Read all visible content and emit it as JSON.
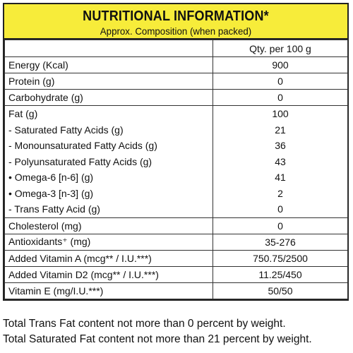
{
  "header": {
    "title": "NUTRITIONAL INFORMATION*",
    "subtitle": "Approx. Composition (when packed)"
  },
  "table": {
    "column_header": "Qty. per 100 g",
    "rows": [
      {
        "label": "Energy  (Kcal)",
        "value": "900"
      },
      {
        "label": "Protein (g)",
        "value": "0"
      },
      {
        "label": "Carbohydrate (g)",
        "value": "0"
      },
      {
        "label": "Fat (g)",
        "value": "100"
      },
      {
        "label": "- Saturated Fatty Acids (g)",
        "value": "21"
      },
      {
        "label": "- Monounsaturated Fatty Acids (g)",
        "value": "36"
      },
      {
        "label": "- Polyunsaturated Fatty Acids (g)",
        "value": "43"
      },
      {
        "label": "• Omega-6 [n-6] (g)",
        "value": "41"
      },
      {
        "label": "• Omega-3 [n-3] (g)",
        "value": "2"
      },
      {
        "label": "- Trans Fatty Acid (g)",
        "value": "0"
      },
      {
        "label": "Cholesterol (mg)",
        "value": "0"
      },
      {
        "label": "Antioxidants⁺ (mg)",
        "value": "35-276"
      },
      {
        "label": "Added Vitamin A (mcg** / I.U.***)",
        "value": "750.75/2500"
      },
      {
        "label": "Added Vitamin D2 (mcg** / I.U.***)",
        "value": "11.25/450"
      },
      {
        "label": "Vitamin E (mg/I.U.***)",
        "value": "50/50"
      }
    ]
  },
  "footer": {
    "line1": "Total Trans Fat content not more than 0 percent by  weight.",
    "line2": "Total Saturated Fat content not more than 21 percent by weight."
  },
  "colors": {
    "header_background": "#f7ec3a",
    "border": "#222222"
  }
}
